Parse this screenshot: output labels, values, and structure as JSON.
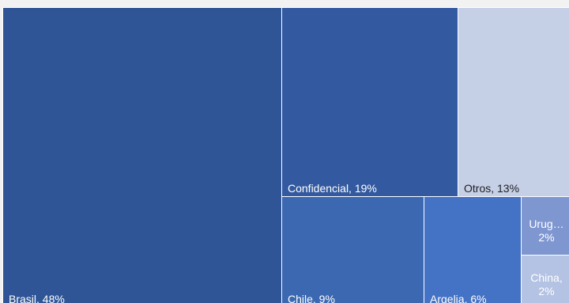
{
  "chart_data": {
    "type": "treemap",
    "title": "",
    "items": [
      {
        "name": "Brasil",
        "label": "Brasil, 48%",
        "value": 48,
        "color": "#2f5597"
      },
      {
        "name": "Confidencial",
        "label": "Confidencial, 19%",
        "value": 19,
        "color": "#335aa0"
      },
      {
        "name": "Otros",
        "label": "Otros, 13%",
        "value": 13,
        "color": "#c5cfe6"
      },
      {
        "name": "Chile",
        "label": "Chile, 9%",
        "value": 9,
        "color": "#3c68b1"
      },
      {
        "name": "Argelia",
        "label": "Argelia, 6%",
        "value": 6,
        "color": "#4472c4"
      },
      {
        "name": "Uruguay",
        "label": "Urug…\n2%",
        "value": 2,
        "color": "#7f97d1"
      },
      {
        "name": "China",
        "label": "China,\n2%",
        "value": 2,
        "color": "#b4c2e3"
      }
    ]
  }
}
